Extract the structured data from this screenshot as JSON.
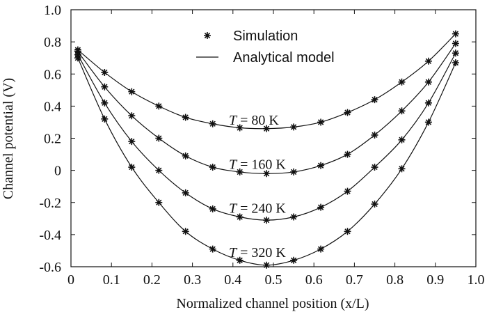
{
  "chart_data": {
    "type": "line",
    "xlabel": "Normalized channel position (x/L)",
    "ylabel": "Channel potential (V)",
    "xlim": [
      0,
      1.0
    ],
    "ylim": [
      -0.6,
      1.0
    ],
    "xticks": [
      "0",
      "0.1",
      "0.2",
      "0.3",
      "0.4",
      "0.5",
      "0.6",
      "0.7",
      "0.8",
      "0.9",
      "1.0"
    ],
    "yticks": [
      "-0.6",
      "-0.4",
      "-0.2",
      "0",
      "0.2",
      "0.4",
      "0.6",
      "0.8",
      "1.0"
    ],
    "legend": {
      "position": "top-center",
      "entries": [
        {
          "label": "Simulation",
          "style": "star-marker"
        },
        {
          "label": "Analytical model",
          "style": "line"
        }
      ]
    },
    "grid": false,
    "series": [
      {
        "name": "T = 80 K",
        "x": [
          0.017,
          0.083,
          0.15,
          0.217,
          0.283,
          0.35,
          0.417,
          0.483,
          0.55,
          0.617,
          0.683,
          0.75,
          0.817,
          0.883,
          0.95
        ],
        "y": [
          0.75,
          0.61,
          0.49,
          0.4,
          0.33,
          0.29,
          0.265,
          0.26,
          0.27,
          0.3,
          0.36,
          0.44,
          0.55,
          0.68,
          0.85
        ]
      },
      {
        "name": "T = 160 K",
        "x": [
          0.017,
          0.083,
          0.15,
          0.217,
          0.283,
          0.35,
          0.417,
          0.483,
          0.55,
          0.617,
          0.683,
          0.75,
          0.817,
          0.883,
          0.95
        ],
        "y": [
          0.74,
          0.52,
          0.34,
          0.2,
          0.09,
          0.02,
          -0.01,
          -0.02,
          -0.01,
          0.03,
          0.1,
          0.22,
          0.37,
          0.55,
          0.79
        ]
      },
      {
        "name": "T = 240 K",
        "x": [
          0.017,
          0.083,
          0.15,
          0.217,
          0.283,
          0.35,
          0.417,
          0.483,
          0.55,
          0.617,
          0.683,
          0.75,
          0.817,
          0.883,
          0.95
        ],
        "y": [
          0.72,
          0.42,
          0.18,
          0.0,
          -0.14,
          -0.24,
          -0.29,
          -0.31,
          -0.29,
          -0.23,
          -0.13,
          0.02,
          0.19,
          0.42,
          0.73
        ]
      },
      {
        "name": "T = 320 K",
        "x": [
          0.017,
          0.083,
          0.15,
          0.217,
          0.283,
          0.35,
          0.417,
          0.483,
          0.55,
          0.617,
          0.683,
          0.75,
          0.817,
          0.883,
          0.95
        ],
        "y": [
          0.7,
          0.32,
          0.02,
          -0.2,
          -0.38,
          -0.49,
          -0.56,
          -0.59,
          -0.56,
          -0.49,
          -0.38,
          -0.21,
          0.01,
          0.3,
          0.67
        ]
      }
    ],
    "annotations": [
      {
        "italic": "T",
        "text": " = 80 K",
        "x": 0.39,
        "y": 0.285
      },
      {
        "italic": "T",
        "text": " = 160 K",
        "x": 0.39,
        "y": 0.01
      },
      {
        "italic": "T",
        "text": " = 240 K",
        "x": 0.39,
        "y": -0.265
      },
      {
        "italic": "T",
        "text": " = 320 K",
        "x": 0.39,
        "y": -0.54
      }
    ]
  }
}
